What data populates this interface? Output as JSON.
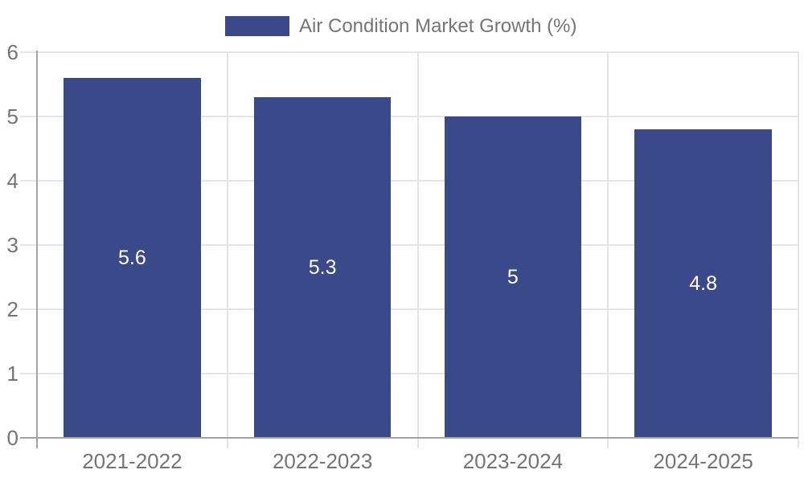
{
  "legend": {
    "label": "Air Condition Market Growth (%)"
  },
  "colors": {
    "bar": "#39498A",
    "grid": "#e4e4e4",
    "axis": "#a3a3a3",
    "text": "#757575",
    "value_label": "#ffffff",
    "background": "#ffffff"
  },
  "chart_data": {
    "type": "bar",
    "title": "Air Condition Market Growth (%)",
    "categories": [
      "2021-2022",
      "2022-2023",
      "2023-2024",
      "2024-2025"
    ],
    "values": [
      5.6,
      5.3,
      5,
      4.8
    ],
    "xlabel": "",
    "ylabel": "",
    "ylim": [
      0,
      6
    ],
    "yticks": [
      0,
      1,
      2,
      3,
      4,
      5,
      6
    ],
    "grid": true,
    "legend_position": "top-center",
    "value_label_position": "inside-center"
  }
}
